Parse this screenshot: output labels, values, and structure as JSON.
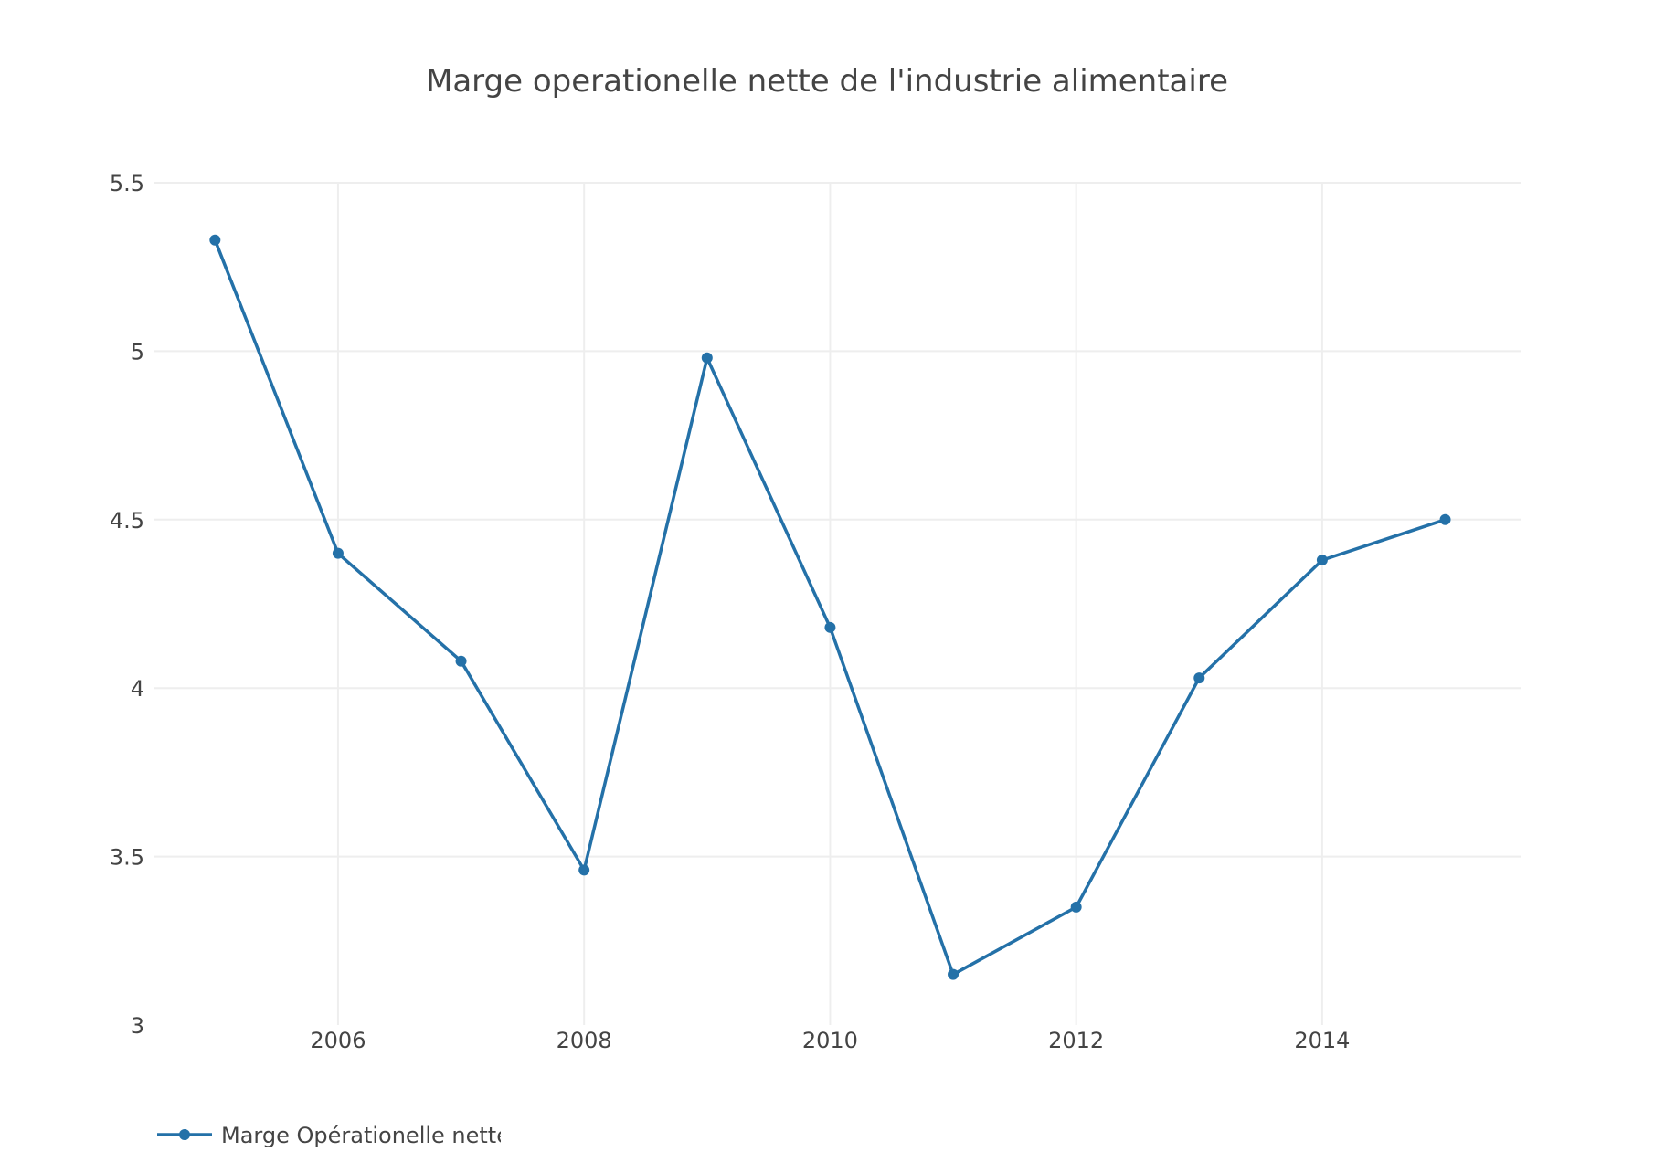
{
  "chart_data": {
    "type": "line",
    "title": "Marge operationelle nette de l'industrie alimentaire",
    "xlabel": "",
    "ylabel": "",
    "x": [
      2005,
      2006,
      2007,
      2008,
      2009,
      2010,
      2011,
      2012,
      2013,
      2014,
      2015
    ],
    "series": [
      {
        "name": "Marge Opérationelle nette",
        "values": [
          5.33,
          4.4,
          4.08,
          3.46,
          4.98,
          4.18,
          3.15,
          3.35,
          4.03,
          4.38,
          4.5
        ],
        "color": "#2471a8",
        "mode": "lines+markers"
      }
    ],
    "xlim": [
      2004.5,
      2015.62
    ],
    "ylim": [
      3,
      5.5
    ],
    "x_ticks": [
      "2006",
      "2008",
      "2010",
      "2012",
      "2014"
    ],
    "y_ticks": [
      "3",
      "3.5",
      "4",
      "4.5",
      "5",
      "5.5"
    ],
    "grid": true,
    "legend_position": "bottom-left",
    "gridline_color": "#eeeeee",
    "text_color": "#444444"
  }
}
